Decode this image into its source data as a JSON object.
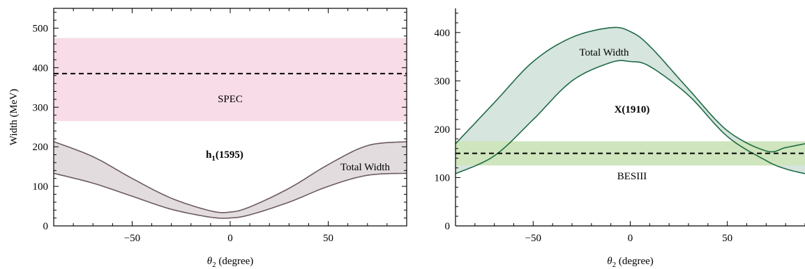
{
  "chart_data": [
    {
      "type": "area",
      "name": "left-panel",
      "xlabel": "θ2 (degree)",
      "xlabel_main": "θ",
      "xlabel_sub": "2",
      "xlabel_rest": " (degree)",
      "ylabel": "Width (MeV)",
      "xlim": [
        -90,
        90
      ],
      "ylim": [
        0,
        550
      ],
      "xticks": [
        -50,
        0,
        50
      ],
      "yticks": [
        0,
        100,
        200,
        300,
        400,
        500
      ],
      "band": {
        "label": "SPEC",
        "low": 265,
        "high": 475,
        "central": 385,
        "color": "#f8dce8"
      },
      "curve_label": "Total Width",
      "curve_color": "#6b5a62",
      "curve_fill": "#e2dcdf",
      "state_label_main": "h",
      "state_label_sub": "1",
      "state_label_rest": "(1595)",
      "series": [
        {
          "name": "upper",
          "x": [
            -90,
            -70,
            -50,
            -30,
            -10,
            0,
            10,
            30,
            50,
            70,
            90
          ],
          "values": [
            213,
            175,
            120,
            70,
            38,
            35,
            48,
            95,
            155,
            203,
            213
          ]
        },
        {
          "name": "lower",
          "x": [
            -90,
            -70,
            -50,
            -30,
            -10,
            0,
            10,
            30,
            50,
            70,
            90
          ],
          "values": [
            133,
            108,
            75,
            42,
            22,
            20,
            28,
            60,
            100,
            128,
            133
          ]
        }
      ]
    },
    {
      "type": "area",
      "name": "right-panel",
      "xlabel": "θ2 (degree)",
      "xlabel_main": "θ",
      "xlabel_sub": "2",
      "xlabel_rest": " (degree)",
      "ylabel": "",
      "xlim": [
        -90,
        90
      ],
      "ylim": [
        0,
        450
      ],
      "xticks": [
        -50,
        0,
        50
      ],
      "yticks": [
        0,
        100,
        200,
        300,
        400
      ],
      "band": {
        "label": "BESIII",
        "low": 125,
        "high": 175,
        "central": 150,
        "color": "#cfe5bd"
      },
      "curve_label": "Total Width",
      "curve_color": "#1f6b46",
      "curve_fill": "#cfe0d8",
      "state_label_main": "X(1910)",
      "state_label_sub": "",
      "state_label_rest": "",
      "series": [
        {
          "name": "upper",
          "x": [
            -90,
            -70,
            -50,
            -30,
            -10,
            0,
            10,
            30,
            50,
            70,
            80,
            90
          ],
          "values": [
            170,
            255,
            340,
            390,
            410,
            402,
            372,
            283,
            197,
            155,
            162,
            170
          ]
        },
        {
          "name": "lower",
          "x": [
            -90,
            -70,
            -50,
            -30,
            -10,
            0,
            10,
            30,
            50,
            70,
            80,
            90
          ],
          "values": [
            108,
            145,
            220,
            300,
            338,
            340,
            330,
            270,
            185,
            135,
            118,
            108
          ]
        }
      ]
    }
  ]
}
